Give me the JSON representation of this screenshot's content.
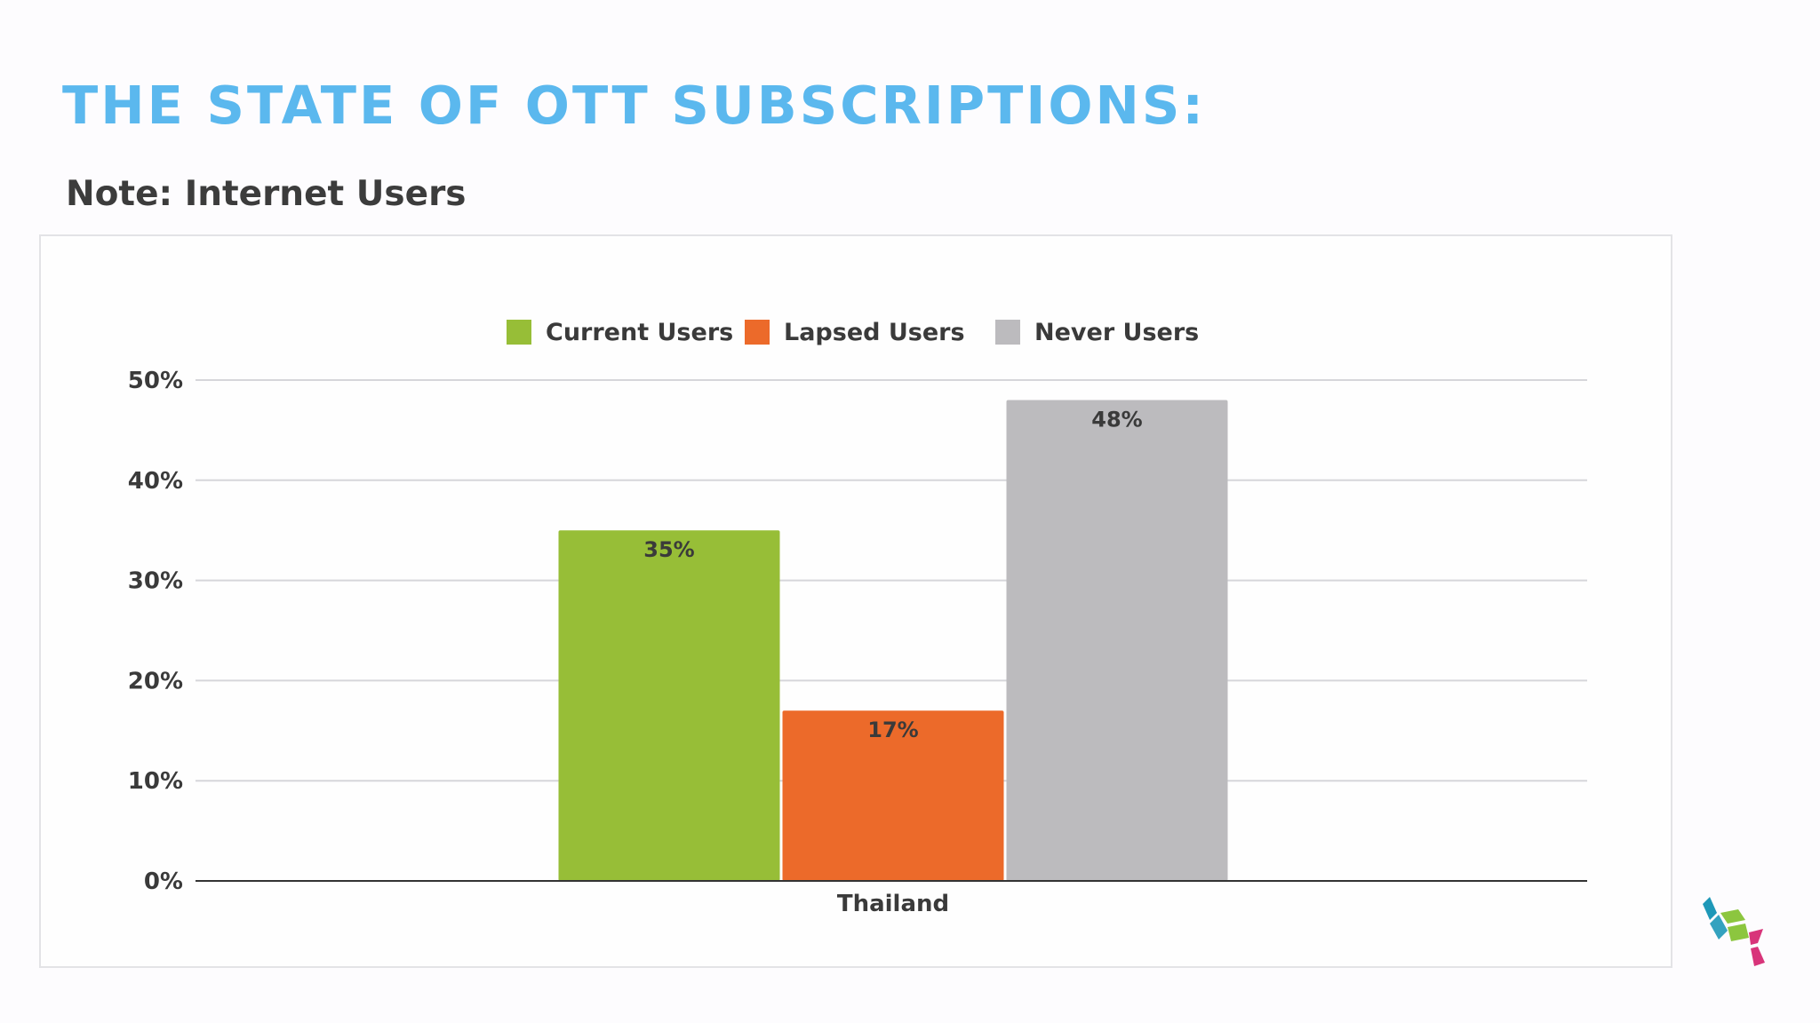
{
  "page": {
    "title": "THE STATE OF OTT SUBSCRIPTIONS:",
    "subtitle": "Note: Internet Users"
  },
  "colors": {
    "title": "#5bb8ee",
    "current": "#97be37",
    "lapsed": "#ec6a2a",
    "never": "#bcbbbe"
  },
  "logo": {
    "icon": "cube-logo-icon"
  },
  "chart_data": {
    "type": "bar",
    "title": "",
    "xlabel": "",
    "ylabel": "",
    "categories": [
      "Thailand"
    ],
    "series": [
      {
        "name": "Current Users",
        "values": [
          35
        ],
        "color": "#97be37",
        "label": "35%"
      },
      {
        "name": "Lapsed Users",
        "values": [
          17
        ],
        "color": "#ec6a2a",
        "label": "17%"
      },
      {
        "name": "Never Users",
        "values": [
          48
        ],
        "color": "#bcbbbe",
        "label": "48%"
      }
    ],
    "ylim": [
      0,
      50
    ],
    "yticks": [
      "0%",
      "10%",
      "20%",
      "30%",
      "40%",
      "50%"
    ],
    "grid": true,
    "legend": "top-center"
  }
}
